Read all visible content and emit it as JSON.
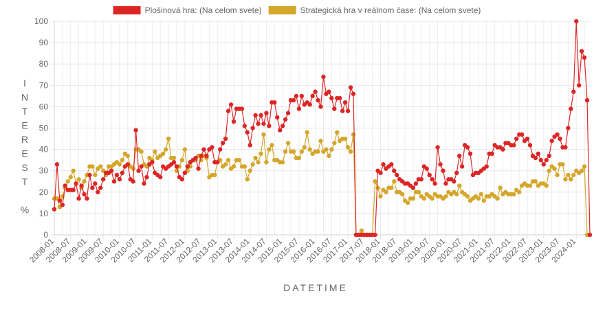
{
  "chart_data": {
    "type": "line",
    "xlabel": "DATETIME",
    "ylabel": "INTEREST %",
    "ylim": [
      0,
      100
    ],
    "yticks": [
      0,
      10,
      20,
      30,
      40,
      50,
      60,
      70,
      80,
      90,
      100
    ],
    "x_start": "2008-01",
    "x_end": "2024-02",
    "xtick_labels": [
      "2008-01",
      "2008-07",
      "2009-01",
      "2009-07",
      "2010-01",
      "2010-07",
      "2011-01",
      "2011-07",
      "2012-01",
      "2012-07",
      "2013-01",
      "2013-07",
      "2014-01",
      "2014-07",
      "2015-01",
      "2015-07",
      "2016-01",
      "2016-07",
      "2017-01",
      "2017-07",
      "2018-01",
      "2018-07",
      "2019-01",
      "2019-07",
      "2020-01",
      "2020-07",
      "2021-01",
      "2021-07",
      "2022-01",
      "2022-07",
      "2023-01",
      "2023-07",
      "2024-01"
    ],
    "grid": true,
    "legend_position": "top",
    "series": [
      {
        "name": "Plošinová hra: (Na celom svete)",
        "color": "#dc2626",
        "values": [
          12,
          33,
          16,
          14,
          23,
          21,
          21,
          21,
          24,
          17,
          23,
          19,
          17,
          28,
          22,
          24,
          20,
          22,
          26,
          29,
          29,
          30,
          25,
          28,
          26,
          29,
          32,
          33,
          26,
          25,
          49,
          30,
          32,
          24,
          27,
          33,
          34,
          29,
          28,
          27,
          32,
          31,
          32,
          33,
          34,
          32,
          27,
          26,
          29,
          32,
          34,
          35,
          36,
          31,
          37,
          40,
          37,
          40,
          41,
          34,
          34,
          40,
          43,
          45,
          58,
          61,
          53,
          59,
          59,
          59,
          51,
          48,
          42,
          50,
          56,
          52,
          56,
          52,
          57,
          51,
          62,
          62,
          55,
          49,
          51,
          54,
          57,
          63,
          63,
          65,
          59,
          65,
          61,
          62,
          61,
          65,
          67,
          63,
          60,
          74,
          66,
          67,
          64,
          59,
          64,
          64,
          58,
          62,
          58,
          69,
          66,
          0,
          0,
          0,
          0,
          0,
          0,
          0,
          0,
          30,
          29,
          33,
          31,
          32,
          33,
          30,
          28,
          26,
          25,
          24,
          24,
          23,
          22,
          24,
          26,
          26,
          32,
          31,
          28,
          26,
          24,
          41,
          33,
          30,
          24,
          26,
          26,
          25,
          29,
          37,
          32,
          42,
          41,
          38,
          28,
          29,
          29,
          30,
          31,
          32,
          38,
          38,
          42,
          41,
          41,
          40,
          43,
          43,
          42,
          42,
          45,
          47,
          47,
          44,
          45,
          42,
          37,
          36,
          38,
          35,
          33,
          35,
          37,
          44,
          46,
          47,
          45,
          41,
          41,
          50,
          59,
          67,
          100,
          70,
          86,
          83,
          63,
          0
        ]
      },
      {
        "name": "Strategická hra v reálnom čase: (Na celom svete)",
        "color": "#d4a72c",
        "values": [
          17,
          17,
          13,
          18,
          22,
          25,
          27,
          30,
          24,
          26,
          22,
          25,
          28,
          32,
          32,
          28,
          31,
          32,
          30,
          28,
          32,
          32,
          33,
          34,
          33,
          35,
          38,
          37,
          32,
          31,
          40,
          40,
          39,
          33,
          32,
          36,
          35,
          39,
          36,
          37,
          38,
          40,
          45,
          36,
          36,
          30,
          32,
          35,
          40,
          30,
          32,
          35,
          35,
          37,
          35,
          37,
          36,
          27,
          28,
          28,
          34,
          35,
          32,
          33,
          35,
          31,
          32,
          35,
          35,
          32,
          32,
          26,
          30,
          33,
          36,
          34,
          38,
          47,
          34,
          40,
          42,
          35,
          35,
          34,
          34,
          39,
          43,
          39,
          39,
          36,
          36,
          39,
          41,
          48,
          40,
          38,
          39,
          39,
          44,
          39,
          40,
          37,
          40,
          43,
          48,
          44,
          45,
          45,
          41,
          39,
          47,
          0,
          0,
          2,
          0,
          0,
          0,
          0,
          25,
          22,
          18,
          21,
          20,
          22,
          22,
          25,
          20,
          20,
          19,
          16,
          15,
          17,
          17,
          20,
          20,
          18,
          17,
          19,
          18,
          17,
          19,
          18,
          18,
          17,
          18,
          20,
          19,
          20,
          19,
          23,
          20,
          19,
          18,
          16,
          17,
          18,
          17,
          19,
          16,
          18,
          18,
          19,
          18,
          17,
          22,
          19,
          20,
          19,
          19,
          19,
          21,
          20,
          23,
          24,
          23,
          23,
          25,
          25,
          23,
          24,
          24,
          23,
          30,
          32,
          31,
          28,
          33,
          33,
          26,
          28,
          26,
          28,
          30,
          29,
          30,
          32,
          0
        ]
      }
    ]
  }
}
